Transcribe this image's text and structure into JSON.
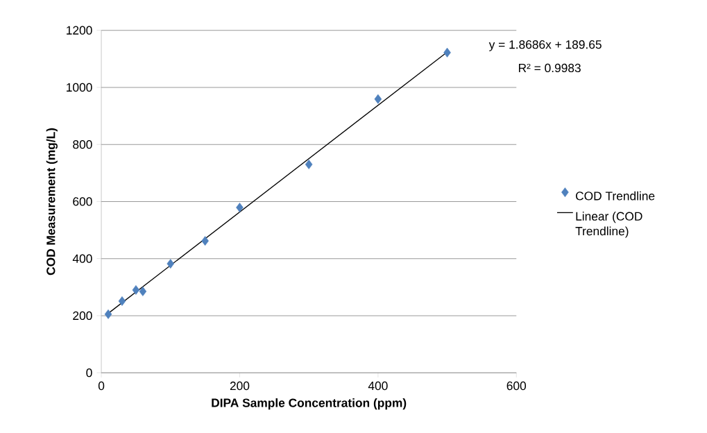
{
  "chart_data": {
    "type": "scatter",
    "xlabel": "DIPA Sample Concentration (ppm)",
    "ylabel": "COD Measurement (mg/L)",
    "xlim": [
      0,
      600
    ],
    "ylim": [
      0,
      1200
    ],
    "xticks": [
      0,
      200,
      400,
      600
    ],
    "yticks": [
      0,
      200,
      400,
      600,
      800,
      1000,
      1200
    ],
    "grid": "y",
    "legend": "right",
    "series": [
      {
        "name": "COD Trendline",
        "marker": "diamond",
        "color": "#4f81bd",
        "x": [
          10,
          30,
          50,
          60,
          100,
          150,
          200,
          300,
          400,
          500
        ],
        "values": [
          205,
          251,
          290,
          285,
          382,
          462,
          579,
          730,
          959,
          1122
        ]
      },
      {
        "name": "Linear (COD Trendline)",
        "type": "line",
        "marker": "none",
        "color": "#000000",
        "line_style": "solid",
        "x": [
          10,
          500
        ],
        "values": [
          208,
          1124
        ]
      }
    ],
    "annotations": [
      "y = 1.8686x + 189.65",
      "R² = 0.9983"
    ]
  }
}
